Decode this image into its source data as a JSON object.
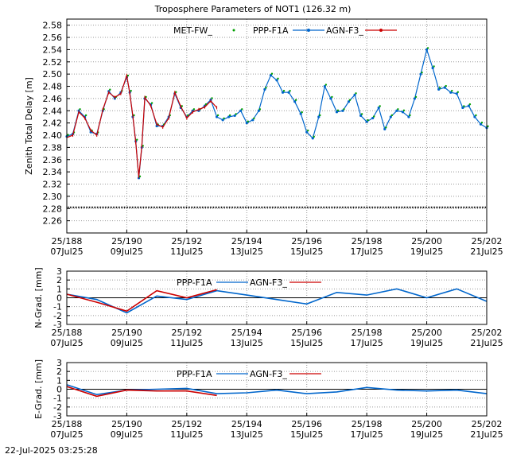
{
  "title": "Troposphere Parameters of NOT1 (126.32 m)",
  "timestamp": "22-Jul-2025 03:25:28",
  "x_ticks": [
    {
      "doy": "25/188",
      "date": "07Jul25"
    },
    {
      "doy": "25/190",
      "date": "09Jul25"
    },
    {
      "doy": "25/192",
      "date": "11Jul25"
    },
    {
      "doy": "25/194",
      "date": "13Jul25"
    },
    {
      "doy": "25/196",
      "date": "15Jul25"
    },
    {
      "doy": "25/198",
      "date": "17Jul25"
    },
    {
      "doy": "25/200",
      "date": "19Jul25"
    },
    {
      "doy": "25/202",
      "date": "21Jul25"
    }
  ],
  "colors": {
    "met": "#00a000",
    "ppp": "#0066cc",
    "agn": "#cc0000",
    "met_line": "#000000"
  },
  "chart_data": [
    {
      "type": "line",
      "ylabel": "Zenith Total Delay [m]",
      "xlim": [
        "25/188",
        "25/202"
      ],
      "ylim": [
        2.24,
        2.59
      ],
      "yticks": [
        "2.26",
        "2.28",
        "2.30",
        "2.32",
        "2.34",
        "2.36",
        "2.38",
        "2.40",
        "2.42",
        "2.44",
        "2.46",
        "2.48",
        "2.50",
        "2.52",
        "2.54",
        "2.56",
        "2.58"
      ],
      "legend": [
        "MET-FW_",
        "PPP-F1A",
        "AGN-F3_"
      ],
      "grid": true,
      "series": [
        {
          "name": "PPP-F1A",
          "x": [
            188.0,
            188.2,
            188.4,
            188.6,
            188.8,
            189.0,
            189.2,
            189.4,
            189.6,
            189.8,
            190.0,
            190.1,
            190.2,
            190.3,
            190.4,
            190.5,
            190.6,
            190.8,
            191.0,
            191.2,
            191.4,
            191.6,
            191.8,
            192.0,
            192.2,
            192.4,
            192.6,
            192.8,
            193.0,
            193.2,
            193.4,
            193.6,
            193.8,
            194.0,
            194.2,
            194.4,
            194.6,
            194.8,
            195.0,
            195.2,
            195.4,
            195.6,
            195.8,
            196.0,
            196.2,
            196.4,
            196.6,
            196.8,
            197.0,
            197.2,
            197.4,
            197.6,
            197.8,
            198.0,
            198.2,
            198.4,
            198.6,
            198.8,
            199.0,
            199.2,
            199.4,
            199.6,
            199.8,
            200.0,
            200.2,
            200.4,
            200.6,
            200.8,
            201.0,
            201.2,
            201.4,
            201.6,
            201.8,
            202.0
          ],
          "y": [
            2.398,
            2.402,
            2.44,
            2.43,
            2.405,
            2.402,
            2.44,
            2.472,
            2.46,
            2.47,
            2.495,
            2.47,
            2.43,
            2.39,
            2.33,
            2.38,
            2.46,
            2.45,
            2.415,
            2.415,
            2.43,
            2.468,
            2.445,
            2.43,
            2.44,
            2.44,
            2.448,
            2.458,
            2.43,
            2.425,
            2.43,
            2.432,
            2.44,
            2.42,
            2.425,
            2.44,
            2.475,
            2.498,
            2.49,
            2.47,
            2.47,
            2.455,
            2.435,
            2.405,
            2.395,
            2.43,
            2.48,
            2.46,
            2.438,
            2.44,
            2.455,
            2.466,
            2.432,
            2.422,
            2.428,
            2.445,
            2.41,
            2.43,
            2.44,
            2.438,
            2.43,
            2.46,
            2.5,
            2.54,
            2.51,
            2.475,
            2.478,
            2.47,
            2.468,
            2.445,
            2.448,
            2.43,
            2.418,
            2.412
          ]
        },
        {
          "name": "AGN-F3_",
          "x": [
            188.0,
            188.2,
            188.4,
            188.6,
            188.8,
            189.0,
            189.2,
            189.4,
            189.6,
            189.8,
            190.0,
            190.1,
            190.2,
            190.3,
            190.4,
            190.5,
            190.6,
            190.8,
            191.0,
            191.2,
            191.4,
            191.6,
            191.8,
            192.0,
            192.2,
            192.4,
            192.6,
            192.8,
            193.0
          ],
          "y": [
            2.396,
            2.4,
            2.438,
            2.428,
            2.408,
            2.4,
            2.442,
            2.47,
            2.462,
            2.468,
            2.498,
            2.468,
            2.432,
            2.388,
            2.332,
            2.382,
            2.462,
            2.448,
            2.418,
            2.413,
            2.428,
            2.47,
            2.447,
            2.428,
            2.438,
            2.442,
            2.446,
            2.456,
            2.445
          ]
        },
        {
          "name": "MET-FW_",
          "x": [
            188.0,
            202.0
          ],
          "y": [
            2.282,
            2.282
          ]
        }
      ]
    },
    {
      "type": "line",
      "ylabel": "N-Grad. [mm]",
      "xlim": [
        "25/188",
        "25/202"
      ],
      "ylim": [
        -3,
        3
      ],
      "yticks": [
        "-3",
        "-2",
        "-1",
        "0",
        "1",
        "2",
        "3"
      ],
      "legend": [
        "PPP-F1A",
        "AGN-F3_"
      ],
      "grid": true,
      "series": [
        {
          "name": "PPP-F1A",
          "x": [
            188,
            189,
            190,
            191,
            192,
            193,
            194,
            195,
            196,
            197,
            198,
            199,
            200,
            201,
            202
          ],
          "y": [
            0.4,
            -0.2,
            -1.7,
            0.2,
            -0.2,
            0.8,
            0.3,
            -0.2,
            -0.7,
            0.6,
            0.3,
            1.0,
            0.0,
            1.0,
            -0.4
          ]
        },
        {
          "name": "AGN-F3_",
          "x": [
            188,
            189,
            190,
            191,
            192,
            193
          ],
          "y": [
            0.4,
            -0.5,
            -1.5,
            0.8,
            0.0,
            0.9
          ]
        }
      ]
    },
    {
      "type": "line",
      "ylabel": "E-Grad. [mm]",
      "xlim": [
        "25/188",
        "25/202"
      ],
      "ylim": [
        -3,
        3
      ],
      "yticks": [
        "-3",
        "-2",
        "-1",
        "0",
        "1",
        "2",
        "3"
      ],
      "legend": [
        "PPP-F1A",
        "AGN-F3_"
      ],
      "grid": true,
      "series": [
        {
          "name": "PPP-F1A",
          "x": [
            188,
            189,
            190,
            191,
            192,
            193,
            194,
            195,
            196,
            197,
            198,
            199,
            200,
            201,
            202
          ],
          "y": [
            0.5,
            -0.6,
            -0.1,
            0.0,
            0.1,
            -0.5,
            -0.4,
            -0.1,
            -0.5,
            -0.3,
            0.2,
            -0.1,
            -0.2,
            -0.1,
            -0.5
          ]
        },
        {
          "name": "AGN-F3_",
          "x": [
            188,
            189,
            190,
            191,
            192,
            193
          ],
          "y": [
            0.3,
            -0.8,
            -0.1,
            -0.2,
            -0.2,
            -0.7
          ]
        }
      ]
    }
  ]
}
